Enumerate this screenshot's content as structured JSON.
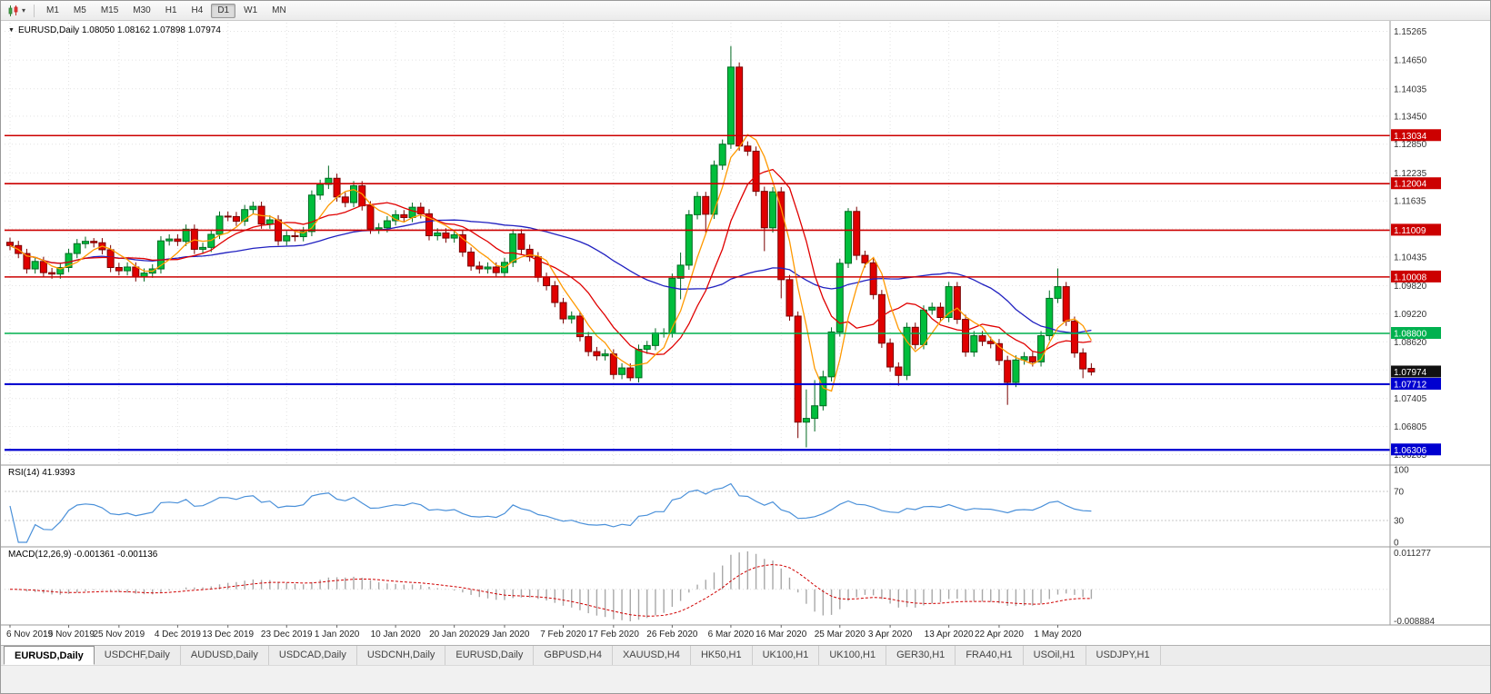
{
  "icons": {
    "caret_down": "▾",
    "title_collapse": "▼"
  },
  "toolbar": {
    "timeframes": [
      "M1",
      "M5",
      "M15",
      "M30",
      "H1",
      "H4",
      "D1",
      "W1",
      "MN"
    ],
    "active_timeframe": "D1"
  },
  "chart": {
    "symbol_title": "EURUSD,Daily",
    "ohlc_text": "1.08050 1.08162 1.07898 1.07974",
    "rsi_label": "RSI(14)",
    "rsi_value": "41.9393",
    "macd_label": "MACD(12,26,9)",
    "macd_values": "-0.001361 -0.001136"
  },
  "colors": {
    "grid": "#e2e2e2",
    "candle_up": "#00be3c",
    "candle_up_stroke": "#006a22",
    "candle_down": "#e00000",
    "candle_down_stroke": "#7a0000",
    "separator": "#9a9a9a",
    "axis_text": "#333333"
  },
  "price_axis": {
    "labels": [
      1.15265,
      1.1465,
      1.14035,
      1.1345,
      1.1285,
      1.12235,
      1.11635,
      1.11035,
      1.10435,
      1.0982,
      1.0922,
      1.0862,
      1.0802,
      1.07405,
      1.06805,
      1.06205
    ]
  },
  "rsi_axis": [
    "100",
    "70",
    "30",
    "0"
  ],
  "macd_axis": {
    "top": "0.011277",
    "bottom": "-0.008884"
  },
  "time_axis": [
    "6 Nov 2019",
    "15 Nov 2019",
    "25 Nov 2019",
    "4 Dec 2019",
    "13 Dec 2019",
    "23 Dec 2019",
    "1 Jan 2020",
    "10 Jan 2020",
    "20 Jan 2020",
    "29 Jan 2020",
    "7 Feb 2020",
    "17 Feb 2020",
    "26 Feb 2020",
    "6 Mar 2020",
    "16 Mar 2020",
    "25 Mar 2020",
    "3 Apr 2020",
    "13 Apr 2020",
    "22 Apr 2020",
    "1 May 2020"
  ],
  "tabs": [
    {
      "label": "EURUSD,Daily",
      "active": true
    },
    {
      "label": "USDCHF,Daily"
    },
    {
      "label": "AUDUSD,Daily"
    },
    {
      "label": "USDCAD,Daily"
    },
    {
      "label": "USDCNH,Daily"
    },
    {
      "label": "EURUSD,Daily"
    },
    {
      "label": "GBPUSD,H4"
    },
    {
      "label": "XAUUSD,H4"
    },
    {
      "label": "HK50,H1"
    },
    {
      "label": "UK100,H1"
    },
    {
      "label": "UK100,H1"
    },
    {
      "label": "GER30,H1"
    },
    {
      "label": "FRA40,H1"
    },
    {
      "label": "USOil,H1"
    },
    {
      "label": "USDJPY,H1"
    }
  ],
  "chart_data": {
    "type": "candlestick",
    "symbol": "EURUSD",
    "timeframe": "Daily",
    "last_ohlc": {
      "open": 1.0805,
      "high": 1.08162,
      "low": 1.07898,
      "close": 1.07974
    },
    "price_range": [
      1.06,
      1.1545
    ],
    "candles": [
      [
        1.1075,
        1.1085,
        1.1058,
        1.1068
      ],
      [
        1.1068,
        1.1078,
        1.1041,
        1.1051
      ],
      [
        1.1051,
        1.1061,
        1.1008,
        1.1018
      ],
      [
        1.1018,
        1.1044,
        1.1008,
        1.1034
      ],
      [
        1.1034,
        1.1044,
        1.1,
        1.101
      ],
      [
        1.101,
        1.102,
        1.0997,
        1.1007
      ],
      [
        1.1007,
        1.1031,
        1.0997,
        1.1021
      ],
      [
        1.1021,
        1.1061,
        1.1011,
        1.1051
      ],
      [
        1.1051,
        1.1082,
        1.1041,
        1.1072
      ],
      [
        1.1072,
        1.1087,
        1.1062,
        1.1077
      ],
      [
        1.1077,
        1.1084,
        1.1064,
        1.1074
      ],
      [
        1.1074,
        1.1084,
        1.1049,
        1.1059
      ],
      [
        1.1059,
        1.1069,
        1.1011,
        1.1021
      ],
      [
        1.1021,
        1.1031,
        1.1004,
        1.1014
      ],
      [
        1.1014,
        1.1032,
        1.1004,
        1.1022
      ],
      [
        1.1022,
        1.1032,
        1.0991,
        1.1001
      ],
      [
        1.1001,
        1.1019,
        1.0991,
        1.1009
      ],
      [
        1.1009,
        1.1028,
        1.0999,
        1.1018
      ],
      [
        1.1018,
        1.1088,
        1.1008,
        1.1078
      ],
      [
        1.1078,
        1.1092,
        1.1068,
        1.1082
      ],
      [
        1.1082,
        1.1092,
        1.1067,
        1.1077
      ],
      [
        1.1077,
        1.1113,
        1.1067,
        1.1103
      ],
      [
        1.1103,
        1.1113,
        1.105,
        1.106
      ],
      [
        1.106,
        1.1074,
        1.105,
        1.1064
      ],
      [
        1.1064,
        1.1102,
        1.1054,
        1.1092
      ],
      [
        1.1092,
        1.1141,
        1.1082,
        1.1131
      ],
      [
        1.1131,
        1.1141,
        1.112,
        1.113
      ],
      [
        1.113,
        1.114,
        1.111,
        1.112
      ],
      [
        1.112,
        1.1155,
        1.111,
        1.1145
      ],
      [
        1.1145,
        1.1162,
        1.1135,
        1.1152
      ],
      [
        1.1152,
        1.1162,
        1.1104,
        1.1114
      ],
      [
        1.1114,
        1.1133,
        1.1104,
        1.1123
      ],
      [
        1.1123,
        1.1133,
        1.1068,
        1.1078
      ],
      [
        1.1078,
        1.1099,
        1.1068,
        1.1089
      ],
      [
        1.1089,
        1.1099,
        1.1077,
        1.1087
      ],
      [
        1.1087,
        1.1108,
        1.1077,
        1.1098
      ],
      [
        1.1098,
        1.1186,
        1.1088,
        1.1176
      ],
      [
        1.1176,
        1.1209,
        1.1166,
        1.1199
      ],
      [
        1.1199,
        1.1239,
        1.1189,
        1.1212
      ],
      [
        1.1212,
        1.1222,
        1.1162,
        1.1172
      ],
      [
        1.1172,
        1.1182,
        1.115,
        1.116
      ],
      [
        1.116,
        1.1206,
        1.115,
        1.1196
      ],
      [
        1.1196,
        1.1206,
        1.1143,
        1.1153
      ],
      [
        1.1153,
        1.1163,
        1.1093,
        1.1103
      ],
      [
        1.1103,
        1.1116,
        1.1093,
        1.1106
      ],
      [
        1.1106,
        1.1131,
        1.1096,
        1.1121
      ],
      [
        1.1121,
        1.1144,
        1.1111,
        1.1134
      ],
      [
        1.1134,
        1.1144,
        1.1118,
        1.1128
      ],
      [
        1.1128,
        1.116,
        1.1118,
        1.115
      ],
      [
        1.115,
        1.116,
        1.1126,
        1.1136
      ],
      [
        1.1136,
        1.1146,
        1.1079,
        1.1089
      ],
      [
        1.1089,
        1.1105,
        1.1079,
        1.1095
      ],
      [
        1.1095,
        1.1105,
        1.1074,
        1.1084
      ],
      [
        1.1084,
        1.1101,
        1.1074,
        1.1091
      ],
      [
        1.1091,
        1.1101,
        1.1044,
        1.1054
      ],
      [
        1.1054,
        1.1064,
        1.1014,
        1.1024
      ],
      [
        1.1024,
        1.1034,
        1.1008,
        1.1018
      ],
      [
        1.1018,
        1.1032,
        1.1008,
        1.1022
      ],
      [
        1.1022,
        1.1032,
        1.1,
        1.101
      ],
      [
        1.101,
        1.1042,
        1.1,
        1.1032
      ],
      [
        1.1032,
        1.1103,
        1.1022,
        1.1093
      ],
      [
        1.1093,
        1.1103,
        1.105,
        1.106
      ],
      [
        1.106,
        1.107,
        1.1034,
        1.1044
      ],
      [
        1.1044,
        1.1054,
        1.099,
        1.1
      ],
      [
        1.1,
        1.101,
        1.0972,
        1.0982
      ],
      [
        1.0982,
        1.0992,
        1.0936,
        1.0946
      ],
      [
        1.0946,
        1.0956,
        1.0901,
        1.0911
      ],
      [
        1.0911,
        1.0927,
        1.0901,
        1.0917
      ],
      [
        1.0917,
        1.0927,
        1.0863,
        1.0873
      ],
      [
        1.0873,
        1.0883,
        1.0831,
        1.0841
      ],
      [
        1.0841,
        1.0851,
        1.0822,
        1.0832
      ],
      [
        1.0832,
        1.0846,
        1.0822,
        1.0836
      ],
      [
        1.0836,
        1.0846,
        1.0782,
        1.0792
      ],
      [
        1.0792,
        1.0816,
        1.0782,
        1.0806
      ],
      [
        1.0806,
        1.0816,
        1.0778,
        1.0785
      ],
      [
        1.0785,
        1.0856,
        1.0775,
        1.0846
      ],
      [
        1.0846,
        1.0864,
        1.0836,
        1.0854
      ],
      [
        1.0854,
        1.0891,
        1.0844,
        1.0881
      ],
      [
        1.0881,
        1.0891,
        1.0871,
        1.0881
      ],
      [
        1.0881,
        1.1008,
        1.0871,
        1.0998
      ],
      [
        1.0998,
        1.1053,
        1.0953,
        1.1026
      ],
      [
        1.1026,
        1.1144,
        1.1016,
        1.1134
      ],
      [
        1.1134,
        1.1183,
        1.1124,
        1.1173
      ],
      [
        1.1173,
        1.1183,
        1.1095,
        1.1135
      ],
      [
        1.1135,
        1.125,
        1.1125,
        1.124
      ],
      [
        1.124,
        1.1295,
        1.123,
        1.1285
      ],
      [
        1.1285,
        1.1495,
        1.1275,
        1.145
      ],
      [
        1.145,
        1.146,
        1.1271,
        1.1281
      ],
      [
        1.1281,
        1.1291,
        1.126,
        1.127
      ],
      [
        1.127,
        1.128,
        1.1174,
        1.1184
      ],
      [
        1.1184,
        1.1194,
        1.1056,
        1.1106
      ],
      [
        1.1106,
        1.1193,
        1.1096,
        1.1183
      ],
      [
        1.1183,
        1.1193,
        1.0955,
        1.0995
      ],
      [
        1.0995,
        1.1005,
        1.0907,
        1.0917
      ],
      [
        1.0917,
        1.0927,
        1.0656,
        1.069
      ],
      [
        1.069,
        1.076,
        1.0636,
        1.0698
      ],
      [
        1.0698,
        1.078,
        1.067,
        1.0725
      ],
      [
        1.0725,
        1.08,
        1.0715,
        1.0787
      ],
      [
        1.0787,
        1.0893,
        1.0777,
        1.0883
      ],
      [
        1.0883,
        1.104,
        1.0873,
        1.103
      ],
      [
        1.103,
        1.1148,
        1.102,
        1.1141
      ],
      [
        1.1141,
        1.1151,
        1.1037,
        1.1047
      ],
      [
        1.1047,
        1.1057,
        1.1021,
        1.1031
      ],
      [
        1.1031,
        1.1041,
        1.0953,
        1.0963
      ],
      [
        1.0963,
        1.0973,
        1.0849,
        1.0859
      ],
      [
        1.0859,
        1.0869,
        1.0798,
        1.0808
      ],
      [
        1.0808,
        1.0818,
        1.0768,
        1.079
      ],
      [
        1.079,
        1.0903,
        1.078,
        1.0893
      ],
      [
        1.0893,
        1.0903,
        1.0846,
        1.0856
      ],
      [
        1.0856,
        1.094,
        1.0846,
        1.093
      ],
      [
        1.093,
        1.0946,
        1.092,
        1.0936
      ],
      [
        1.0936,
        1.0946,
        1.0904,
        1.0914
      ],
      [
        1.0914,
        1.099,
        1.0904,
        1.098
      ],
      [
        1.098,
        1.099,
        1.09,
        1.091
      ],
      [
        1.091,
        1.092,
        1.083,
        1.084
      ],
      [
        1.084,
        1.0885,
        1.083,
        1.0875
      ],
      [
        1.0875,
        1.0885,
        1.0853,
        1.0863
      ],
      [
        1.0863,
        1.0873,
        1.0848,
        1.0858
      ],
      [
        1.0858,
        1.0868,
        1.0812,
        1.0822
      ],
      [
        1.0822,
        1.0832,
        1.0727,
        1.0775
      ],
      [
        1.0775,
        1.0833,
        1.0765,
        1.0823
      ],
      [
        1.0823,
        1.084,
        1.0813,
        1.083
      ],
      [
        1.083,
        1.084,
        1.0809,
        1.0819
      ],
      [
        1.0819,
        1.0885,
        1.0809,
        1.0875
      ],
      [
        1.0875,
        1.0972,
        1.0865,
        1.0955
      ],
      [
        1.0955,
        1.1019,
        1.0945,
        1.098
      ],
      [
        1.098,
        1.099,
        1.0896,
        1.0906
      ],
      [
        1.0906,
        1.0916,
        1.0828,
        1.0838
      ],
      [
        1.0838,
        1.0848,
        1.0784,
        1.0804
      ],
      [
        1.0805,
        1.08162,
        1.07898,
        1.07974
      ]
    ],
    "moving_averages": [
      {
        "period": 34,
        "color": "#2020c0"
      },
      {
        "period": 10,
        "color": "#e00000"
      },
      {
        "period": 5,
        "color": "#ff9900"
      }
    ],
    "horizontal_lines": [
      {
        "value": 1.13034,
        "color": "#cc0000",
        "width": 1.6
      },
      {
        "value": 1.12004,
        "color": "#cc0000",
        "width": 1.6
      },
      {
        "value": 1.11009,
        "color": "#cc0000",
        "width": 1.6
      },
      {
        "value": 1.10008,
        "color": "#cc0000",
        "width": 1.6
      },
      {
        "value": 1.088,
        "color": "#00b14f",
        "width": 1.6
      },
      {
        "value": 1.07712,
        "color": "#0000d0",
        "width": 2.2
      },
      {
        "value": 1.06306,
        "color": "#0000d0",
        "width": 2.2
      }
    ],
    "current_price": {
      "value": 1.07974,
      "label_bg": "#111111"
    },
    "rsi": {
      "period": 14,
      "levels": [
        70,
        30
      ],
      "color": "#4a90d9"
    },
    "macd": {
      "fast": 12,
      "slow": 26,
      "signal": 9,
      "hist_color": "#a8a8a8",
      "signal_color": "#d00000"
    }
  }
}
